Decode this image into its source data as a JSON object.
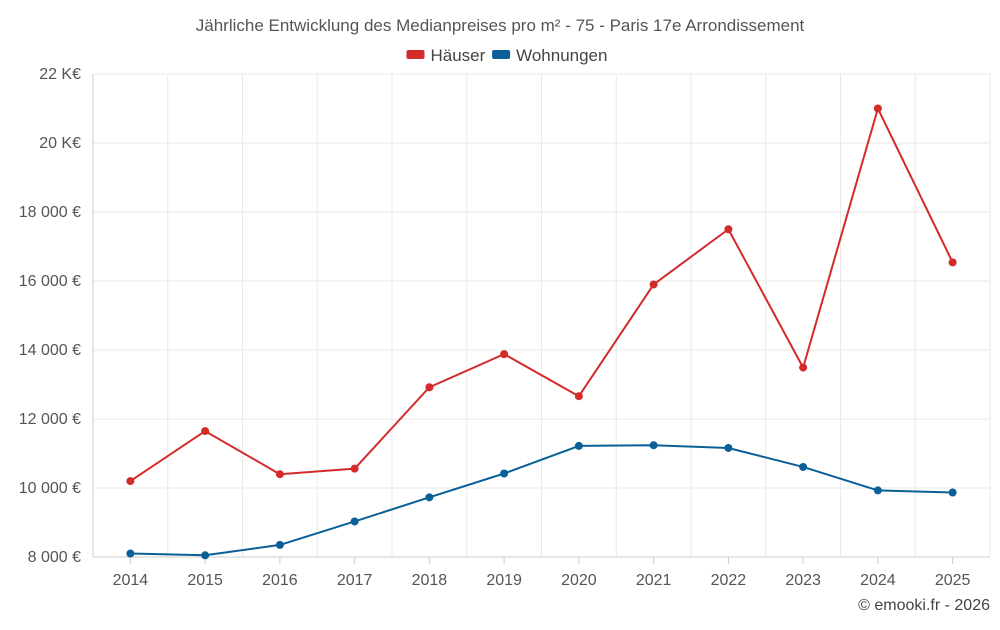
{
  "chart_data": {
    "type": "line",
    "title": "Jährliche Entwicklung des Medianpreises pro m² - 75 - Paris 17e Arrondissement",
    "categories": [
      "2014",
      "2015",
      "2016",
      "2017",
      "2018",
      "2019",
      "2020",
      "2021",
      "2022",
      "2023",
      "2024",
      "2025"
    ],
    "series": [
      {
        "name": "Häuser",
        "color": "#d32a2a",
        "values": [
          10200,
          11650,
          10400,
          10560,
          12920,
          13880,
          12660,
          15900,
          17500,
          13490,
          21000,
          16540
        ]
      },
      {
        "name": "Wohnungen",
        "color": "#0a5f96",
        "values": [
          8100,
          8050,
          8350,
          9030,
          9730,
          10420,
          11220,
          11240,
          11160,
          10610,
          9930,
          9870
        ]
      }
    ],
    "ylim": [
      8000,
      22000
    ],
    "yticks": [
      8000,
      10000,
      12000,
      14000,
      16000,
      18000,
      20000,
      22000
    ],
    "ytick_labels": [
      "8 000 €",
      "10 000 €",
      "12 000 €",
      "14 000 €",
      "16 000 €",
      "18 000 €",
      "20 K€",
      "22 K€"
    ],
    "xlabel": "",
    "ylabel": "",
    "grid": true,
    "legend_position": "top-center"
  },
  "credit": "© emooki.fr - 2026"
}
